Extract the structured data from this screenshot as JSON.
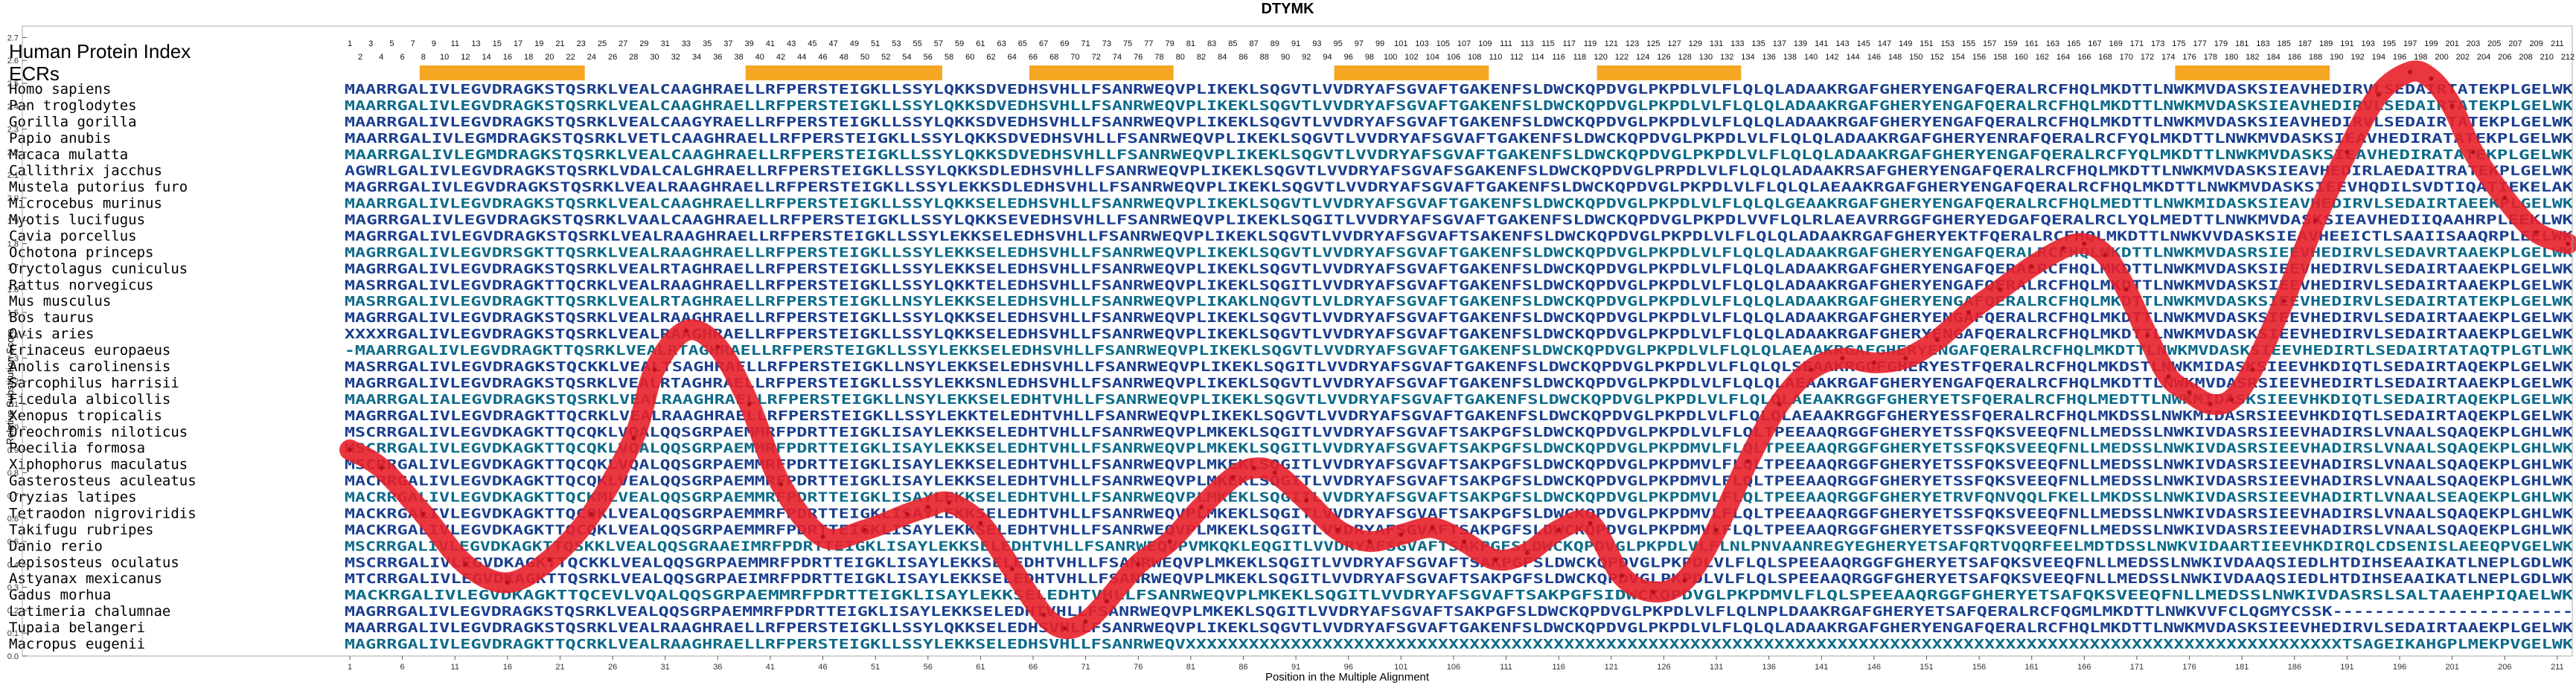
{
  "chart_data": {
    "type": "line",
    "title": "DTYMK",
    "xlabel": "Position in the Multiple Alignment",
    "ylabel": "Relative Substitution Score",
    "xlim": [
      1,
      212
    ],
    "ylim": [
      0.0,
      2.75
    ],
    "yticks": [
      "0.0",
      "0.1",
      "0.2",
      "0.3",
      "0.4",
      "0.5",
      "0.6",
      "0.7",
      "0.8",
      "0.9",
      "1.0",
      "1.1",
      "1.2",
      "1.3",
      "1.4",
      "1.5",
      "1.6",
      "1.7",
      "1.8",
      "1.9",
      "2.0",
      "2.1",
      "2.2",
      "2.3",
      "2.4",
      "2.5",
      "2.6",
      "2.7"
    ],
    "xticks": [
      1,
      6,
      11,
      16,
      21,
      26,
      31,
      36,
      41,
      46,
      51,
      56,
      61,
      66,
      71,
      76,
      81,
      86,
      91,
      96,
      101,
      106,
      111,
      116,
      121,
      126,
      131,
      136,
      141,
      146,
      151,
      156,
      161,
      166,
      171,
      176,
      181,
      186,
      191,
      196,
      201,
      206,
      211
    ],
    "header_label": "Human Protein Index",
    "ecr_label": "ECRs",
    "ecr_regions": [
      [
        8,
        23
      ],
      [
        39,
        57
      ],
      [
        66,
        79
      ],
      [
        95,
        109
      ],
      [
        120,
        133
      ],
      [
        175,
        189
      ]
    ],
    "species": [
      "Homo sapiens",
      "Pan troglodytes",
      "Gorilla gorilla",
      "Papio anubis",
      "Macaca mulatta",
      "Callithrix jacchus",
      "Mustela putorius furo",
      "Microcebus murinus",
      "Myotis lucifugus",
      "Cavia porcellus",
      "Ochotona princeps",
      "Oryctolagus cuniculus",
      "Rattus norvegicus",
      "Mus musculus",
      "Bos taurus",
      "Ovis aries",
      "Erinaceus europaeus",
      "Anolis carolinensis",
      "Sarcophilus harrisii",
      "Ficedula albicollis",
      "Xenopus tropicalis",
      "Oreochromis niloticus",
      "Poecilia formosa",
      "Xiphophorus maculatus",
      "Gasterosteus aculeatus",
      "Oryzias latipes",
      "Tetraodon nigroviridis",
      "Takifugu rubripes",
      "Danio rerio",
      "Lepisosteus oculatus",
      "Astyanax mexicanus",
      "Gadus morhua",
      "Latimeria chalumnae",
      "Tupaia belangeri",
      "Macropus eugenii"
    ],
    "sequences": [
      "MAARRGALIVLEGVDRAGKSTQSRKLVEALCAAGHRAELLRFPERSTEIGKLLSSYLQKKSDVEDHSVHLLFSANRWEQVPLIKEKLSQGVTLVVDRYAFSGVAFTGAKENFSLDWCKQPDVGLPKPDLVLFLQLQLADAAKRGAFGHERYENGAFQERALRCFHQLMKDTTLNWKMVDASKSIEAVHEDIRVLSEDAIRTATEKPLGELWK",
      "MAARRGALIVLEGVDRAGKSTQSRKLVEALCAAGHRAELLRFPERSTEIGKLLSSYLQKKSDVEDHSVHLLFSANRWEQVPLIKEKLSQGVTLVVDRYAFSGVAFTGAKENFSLDWCKQPDVGLPKPDLVLFLQLQLADAAKRGAFGHERYENGAFQERALRCFHQLMKDTTLNWKMVDASKSIEAVHEDIRVLSEDAIRTATEKPLGELWK",
      "MAARRGALIVLEGVDRAGKSTQSRKLVEALCAAGYRAELLRFPERSTEIGKLLSSYLQKKSDVEDHSVHLLFSANRWEQVPLIKEKLSQGVTLVVDRYAFSGVAFTGAKENFSLDWCKQPDVGLPKPDLVLFLQLQLADAAKRGAFGHERYENGAFQERALRCFHQLMKDTTLNWKMVDASKSIEAVHEDIRVLSEDAIRTATEKPLGELWK",
      "MAARRGALIVLEGMDRAGKSTQSRKLVETLCAAGHRAELLRFPERSTEIGKLLSSYLQKKSDVEDHSVHLLFSANRWEQVPLIKEKLSQGVTLVVDRYAFSGVAFTGAKENFSLDWCKQPDVGLPKPDLVLFLQLQLADAAKRGAFGHERYENRAFQERALRCFYQLMKDTTLNWKMVDASKSIEAVHEDIRATATEKPLGELWK",
      "MAARRGALIVLEGMDRAGKSTQSRKLVEALCAAGHRAELLRFPERSTEIGKLLSSYLQKKSDVEDHSVHLLFSANRWEQVPLIKEKLSQGVTLVVDRYAFSGVAFTGAKENFSLDWCKQPDVGLPKPDLVLFLQLQLADAAKRGAFGHERYENGAFQERALRCFYQLMKDTTLNWKMVDASKSIEAVHEDIRATATEKPLGELWK",
      "AGWRLGALIVLEGVDRAGKSTQSRKLVDALCALGHRAELLRFPERSTEIGKLLSSYLQKKSDLEDHSVHLLFSANRWEQVPLIKEKLSQGVTLVVDRYAFSGVAFSGAKENFSLDWCKQPDVGLPRPDLVLFLQLQLADAAKRSAFGHERYENGAFQERALRCFHQLMKDTTLNWKMVDASKSIEAVHEDIRLAEDAITRATEKPLGELWK",
      "MAGRRGALIVLEGVDRAGKSTQSRKLVEALRAAGHRAELLRFPERSTEIGKLLSSYLEKKSDLEDHSVHLLFSANRWEQVPLIKEKLSQGVTLVVDRYAFSGVAFTGAKENFSLDWCKQPDVGLPKPDLVLFLQLQLAEAAKRGAFGHERYENGAFQERALRCFHQLMKDTTLNWKMVDASKSIEEVHQDILSVDTIQATIEKELAK",
      "MAARRGALIVLEGVDRAGKSTQSRKLVEALCAAGHRAELLRFPERSTEIGKLLSSYLQKKSELEDHSVHLLFSANRWEQVPLIKEKLSQGVTLVVDRYAFSGVAFTGAKENFSLDWCKQPDVGLPKPDLVLFLQLQLGEAAKRGAFGHERYENGAFQERALRCFHQLMEDTTLNWKMIDASKSIEAVHEDIRVLSEDAIRTAEEKPLGELWK",
      "MAGRRGALIVLEGVDRAGKSTQSRKLVAALCAAGHRAELLRFPERSTEIGKLLSSYLQKKSEVEDHSVHLLFSANRWEQVPLIKEKLSQGITLVVDRYAFSGVAFTGAKENFSLDWCKQPDVGLPKPDLVVFLQLRLAEAVRRGGFGHERYEDGAFQERALRCLYQLMEDTTLNWKMVDASKSIEAVHEDIIQAAHRPLEEKLWK",
      "MAGRRGALIVLEGVDRAGKSTQSRKLVEALRAAGHRAELLRFPERSTEIGKLLSSYLEKKSELEDHSVHLLFSANRWEQVPLIKEKLSQGVTLVVDRYAFSGVAFTSAKENFSLDWCKQPDVGLPKPDLVLFLQLQLADAAKRGAFGHERYEKTFQERALRCFHQLMKDTTLNWKVVDASKSIEAVHEEICTLSAAIISAAQRPLEELWK",
      "MAGRRGALIVLEGVDRSGKTTQSRKLVEALRAAGHRAELLRFPERSTEIGKLLSSYLEKKSELEDHSVHLLFSANRWEQVPLIKEKLSQGVTLVVDRYAFSGVAFTGAKENFSLDWCKQPDVGLPKPDLVLFLQLQLADAAKRGAFGHERYENGAFQERALRCFHQLMKDTTLNWKMVDASRSIEEVHEDIRVLSEDAVRTAAEKPLGELWK",
      "MAGRRGALIVLEGVDRAGKSTQSRKLVEALRTAGHRAELLRFPERSTEIGKLLSSYLEKKSELEDHSVHLLFSANRWEQVPLIKEKLSQGVTLVVDRYAFSGVAFTGAKENFSLDWCKQPDVGLPKPDLVLFLQLQLADAAKRGAFGHERYENGAFQERALRCFHQLMKDTTLNWKMVDASKSIEEVHEDIRVLSEDAIRTAAEKPLGELWK",
      "MASRRGALIVLEGVDRAGKTTQCRKLVEALRAAGHRAELLRFPERSTEIGKLLSSYLQKKTELEDHSVHLLFSANRWEQVPLIKEKLSQGITLVVDRYAFSGVAFTGAKENFSLDWCKQPDVGLPKPDLVLFLQLQLADAAKRGAFGHERYENGAFQERALRCFHQLMKDTTLNWKMVDASKSIEEVHEDIRVLSEDAIRTAAEKPLGELWK",
      "MASRRGALIVLEGVDRAGKTTQSRKLVEALRTAGHRAELLRFPERSTEIGKLLNSYLEKKSELEDHSVHLLFSANRWEQVPLIKAKLNQGVTLVLDRYAFSGVAFTGAKENFSLDWCKQPDVGLPKPDLVLFLQLQLADAAKRGAFGHERYENGAFQERALRCFHQLMKDTTLNWKMVDASKSIEEVHEDIRVLSEDAIRTATEKPLGELWK",
      "MAGRRGALIVLEGVDRAGKSTQSRKLVEALRAAGHRAELLRFPERSTEIGKLLSSYLQKKSELEDHSVHLLFSANRWEQVPLIKEKLSQGVTLVVDRYAFSGVAFTGAKENFSLDWCKQPDVGLPKPDLVLFLQLQLADAAKRGAFGHERYENGAFQERALRCFHQLMKDTTLNWKMVDASKSIEEVHEDIRVLSEDAIRTAAEKPLGELWK",
      "XXXXRGALIVLEGVDRAGKSTQSRKLVEALRAAGHRAELLRFPERSTEIGKLLSSYLQKKSELEDHSVHLLFSANRWEQVPLIKEKLSQGVTLVVDRYAFSGVAFTGAKENFSLDWCKQPDVGLPKPDLVLFLQLQLADAAKRGAFGHERYENGAFQERALRCFHQLMKDTTLNWKMVDASKSIEEVHEDIRVLSEDAIRTAAEKPLGELWK",
      "-MAARRGALIVLEGVDRAGKTTQSRKLVEALRTAGHRAELLRFPERSTEIGKLLSSYLEKKSELEDHSVHLLFSANRWEQVPLIKEKLSQGVTLVVDRYAFSGVAFTGAKENFSLDWCKQPDVGLPKPDLVLFLQLQLAEAAKRGAFGHERYENGAFQERALRCFHQLMKDTTLNWKMVDASKSIEEVHEDIRTLSEDAIRTATAQTPLGTLWK",
      "MASRRGALIVLEGVDRAGKSTQCKKLVEALTSAGHRAELLRFPERSTEIGKLLNSYLEKKSELEDHSVHLLFSANRWEQVPLIKEKLSQGITLVVDRYAFSGVAFTGAKENFSLDWCKQPDVGLPKPDLVLFLQLQLSEAAKRGGFGHERYESTFQERALRCFHQLMKDSTLNWKMIDASKSIEEVHKDIQTLSEDAIRTAQEKPLGELWK",
      "MAGRRGALIVLEGVDRAGKSTQSRKLVEALRTAGHRAELLRFPERSTEIGKLLSSYLEKKSNLEDHSVHLLFSANRWEQVPLIKEKLSQGVTLVVDRYAFSGVAFTGAKENFSLDWCKQPDVGLPKPDLVLFLQLQLAEAAKRGAFGHERYENGAFQERALRCFHQLMKDTTLNWKMVDASRSIEEVHEDIRTLSEDAIRTAAEKPLGELWK",
      "MAARRGALIALEGVDRAGKSTQSRKLVEALRAAGHRAELLRFPERSTEIGKLLNSYLEKKSELEDHTVHLLFSANRWEQVPLIKEKLSQGVTLVVDRYAFSGVAFTGAKENFSLDWCKQPDVGLPKPDLVLFLQLQLAEAAKRGGFGHERYETSFQERALRCFHQLMEDTTLNWKMIDASKSIEEVHKDIQTLSEDAIRTAQEKPLGELWK",
      "MAGRRGALIVLEGVDRAGKTTQCRKLVEALRAAGHRAELLRFPERSTEIGKLLSSYLEKKTELEDHTVHLLFSANRWEQVPLIKEKLSQGVTLVVDRYAFSGVAFTGAKENFSLDWCKQPDVGLPKPDLVLFLQLQLAEAAKRGGFGHERYESSFQERALRCFHQLMKDSSLNWKMIDASRSIEEVHKDIQTLSEDAIRTAQEKPLGELWK",
      "MSCRRGALIVLEGVDKAGKTTQCQKLVQALQQSGRPAEMMRFPDRTTEIGKLISAYLEKKSELEDHTVHLLFSANRWEQVPLMKEKLSQGITLVVDRYAFSGVAFTSAKPGFSLDWCKQPDVGLPKPDLVLFLQLTPEEAAQRGGFGHERYETSSFQKSVEEQFNLLMEDSSLNWKIVDASRSIEEVHADIRSLVNAALSQAQEKPLGHLWK",
      "MSCRRGALIVLEGVDKAGKTTQCQKLVQALQQSGRPAEMMRFPDRTTEIGKLISAYLEKKSELEDHTVHLLFSANRWEQVPLMKEKLSQGITLVVDRYAFSGVAFTSAKPGFSLDWCKQPDVGLPKPDMVLFLQLTPEEAAQRGGFGHERYETSSFQKSVEEQFNLLMEDSSLNWKIVDASRSIEEVHADIRSLVNAALSQAQEKPLGHLWK",
      "MSCRRGALIVLEGVDKAGKTTQCQKLVQALQQSGRPAEMMRFPDRTTEIGKLISAYLEKKSELEDHTVHLLFSANRWEQVPLMKEKLSQGITLVVDRYAFSGVAFTSAKPGFSLDWCKQPDVGLPKPDMVLFLQLTPEEAAQRGGFGHERYETSSFQKSVEEQFNLLMEDSSLNWKIVDASRSIEEVHADIRSLVNAALSQAQEKPLGHLWK",
      "MACRRGALIVLEGVDKAGKTTQCQKLVEALQQSGRPAEMMRFPDRTTEIGKLISAYLEKKSELEDHTVHLLFSANRWEQVPLMKEKLSQGITLVVDRYAFSGVAFTSAKPGFSLDWCKQPDVGLPKPDMVLFLQLTPEEAAQRGGFGHERYETSSFQKSVEEQFNLLMEDSSLNWKIVDASRSIEEVHADIRSLVNAALSQAQEKPLGHLWK",
      "MACRRGALIVLEGVDKAGKTTQCKMLVEALQQSGRPAEMMRFPDRTTEIGKLISAYLEKKSELEDHTVHLLFSANRWEQVPLMKEKLSQGITLVVDRYAFSGVAFTSAKPGFSLDWCKQPDVGLPKPDMVLFLQLTPEEAAQRGGFGHERYETRVFQNVQQLFKELLMKDSSLNWKIVDASRSIEEVHADIRTLVNAALSEAQEKPLGHLWK",
      "MACKRGALIVLEGVDKAGKTTQCQKLVEALQQSGRPAEMMRFPDRTTEIGKLISAYLEKKSELEDHTVHLLFSANRWEQVPLMKEKLSQGITLVVDRYAFSGVAFTSAKPGFSLDWCKQPDVGLPKPDMVLFLQLTPEEAAQRGGFGHERYETSSFQKSVEEQFNLLMEDSSLNWKIVDASRSIEEVHADIRSLVNAALSQAQEKPLGHLWK",
      "MACKRGALIVLEGVDKAGKTTQCQKLVEALQQSGRPAEMMRFPDRTTEIGKLISAYLEKKSELEDHTVHLLFSANRWEQVPLMKEKLSQGITLVVDRYAFSGVAFTSAKPGFSLDWCKQPDVGLPKPDMVLFLQLTPEEAAQRGGFGHERYETSSFQKSVEEQFNLLMEDSSLNWKIVDASRSIEEVHADIRSLVNAALSQAQEKPLGHLWK",
      "MSCRRGALIVLEGVDKAGKTTQSKKLVEALQQSGRAAEIMRFPDRTTEIGKLISAYLEKKSELEDHTVHLLFSANRWEQVPVMKQKLEQGITLVVDRYAFSGVAFTSAKPGFSLDWCKQPDVGLPKPDLVLFLNLPNVAANREGYEGHERYETSAFQRTVQQRFEELMDTDSSLNWKVIDAARTIEEVHKDIRQLCDSENISLAEEQPVGELWK",
      "MSCRRGALIVLEGVDKAGKTTQCKKLVEALQQSGRPAEMMRFPDRTTEIGKLISAYLEKKSELEDHTVHLLFSANRWEQVPLMKEKLSQGITLVVDRYAFSGVAFTSAKPGFSLDWCKQPDVGLPKPDLVLFLQLSPEEAAQRGGFGHERYETSAFQKSVEEQFNLLMEDSSLNWKIVDAAQSIEDLHTDIHSEAAIKATLNEPLGDLWK",
      "MTCRRGALIVLEGVDKAGKTTQSRKLVEALQQSGRPAEIMRFPDRTTEIGKLISAYLEKKSELEDHTVHLLFSANRWEQVPLMKEKLSQGITLVVDRYAFSGVAFTSAKPGFSLDWCKQPDVGLPKPDLVLFLQLSPEEAAQRGGFGHERYETSAFQKSVEEQFNLLMEDSSLNWKIVDAAQSIEDLHTDIHSEAAIKATLNEPLGDLWK",
      "MACKRGALIVLEGVDKAGKTTQCEVLVQALQQSGRPAEMMRFPDRTTEIGKLISAYLEKKSELEDHTVHLLFSANRWEQVPLMKEKLSQGITLVVDRYAFSGVAFTSAKPGFSIDWCKQPDVGLPKPDMVLFLQLSPEEAAQRGGFGHERYETSAFQKSVEEQFNLLMEDSSLNWKIVDASRSLSALTAAEHPIQAELWK",
      "MAGRRGALIVLEGVDRAGKSTQSRKLVEALQQSGRPAEMMRFPDRTTEIGKLISAYLEKKSELEDHTVHLLFSANRWEQVPLMKEKLSQGITLVVDRYAFSGVAFTSAKPGFSLDWCKQPDVGLPKPDLVLFLQLNPLDAAKRGAFGHERYETSAFQERALRCFQGMLMKDTTLNWKVVFCLQGMYCSSK-----------------------",
      "MAARRGALIVLEGVDRAGKSTQSRKLVEALRAAGHRAELLRFPERSTEIGKLLSSYLQKKSELEDHSVHLLFSANRWEQVPLIKEKLSQGVTLVVDRYAFSGVAFTGAKENFSLDWCKQPDVGLPKPDLVLFLQLQLADAAKRGAFGHERYENGAFQERALRCFHQLMKDTTLNWKMVDASKSIEEVHEDIRVLSEDAIRTAAEKPLGELWK",
      "MAGRRGALIVLEGVDRAGKTTQCRKLVEALRAAGHRAELLRFPERSTEIGKLLSSYLEKKSELEDHSVHLLFSANRWEQVXXXXXXXXXXXXXXXXXXXXXXXXXXXXXXXXXXXXXXXXXXXXXXXXXXXXXXXXXXXXXXXXXXXXXXXXXXXXXXXXXXXXXXXXXXXXXXXXXXXXXXXXXXXXXXTSAGEIKAHGPLMEKPVGELWK"
    ],
    "curve_x": [
      1,
      4,
      8,
      12,
      16,
      20,
      24,
      28,
      30,
      33,
      36,
      39,
      42,
      46,
      50,
      54,
      56,
      58,
      61,
      64,
      67,
      69,
      71,
      73,
      76,
      79,
      82,
      85,
      87,
      89,
      92,
      95,
      98,
      101,
      104,
      107,
      110,
      113,
      116,
      119,
      122,
      125,
      128,
      131,
      134,
      137,
      140,
      143,
      146,
      149,
      152,
      155,
      158,
      161,
      164,
      166,
      168,
      170,
      172,
      174,
      176,
      178,
      180,
      182,
      185,
      188,
      191,
      194,
      197,
      199,
      201,
      203,
      206,
      209,
      212
    ],
    "curve_y": [
      0.9,
      0.82,
      0.62,
      0.4,
      0.32,
      0.42,
      0.62,
      0.95,
      1.25,
      1.42,
      1.35,
      1.1,
      0.75,
      0.52,
      0.55,
      0.62,
      0.65,
      0.67,
      0.58,
      0.38,
      0.18,
      0.12,
      0.15,
      0.24,
      0.4,
      0.5,
      0.65,
      0.78,
      0.82,
      0.8,
      0.68,
      0.55,
      0.5,
      0.53,
      0.56,
      0.5,
      0.42,
      0.45,
      0.55,
      0.58,
      0.35,
      0.28,
      0.33,
      0.55,
      0.85,
      1.1,
      1.25,
      1.3,
      1.28,
      1.3,
      1.38,
      1.5,
      1.6,
      1.7,
      1.78,
      1.8,
      1.75,
      1.6,
      1.4,
      1.22,
      1.15,
      1.1,
      1.12,
      1.25,
      1.55,
      1.9,
      2.2,
      2.45,
      2.55,
      2.52,
      2.4,
      2.2,
      2.0,
      1.85,
      1.8
    ],
    "colors": {
      "line": "#e8202a",
      "ecr": "#f5a623",
      "sequence": "#1a3f8e",
      "sequence_alt": "#0e6a8a",
      "axis": "#555555",
      "text": "#000000"
    }
  }
}
